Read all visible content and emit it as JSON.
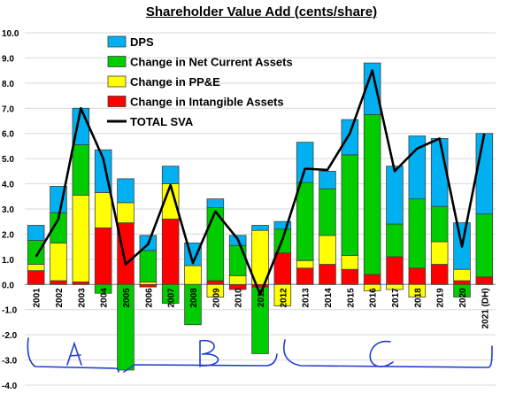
{
  "chart_data": {
    "type": "bar",
    "stacked": true,
    "title": "Shareholder Value Add (cents/share)",
    "categories": [
      "2001",
      "2002",
      "2003",
      "2004",
      "2005",
      "2006",
      "2007",
      "2008",
      "2009",
      "2010",
      "2011",
      "2012",
      "2013",
      "2014",
      "2015",
      "2016",
      "2017",
      "2018",
      "2019",
      "2020",
      "2021 (DH)"
    ],
    "ylim": [
      -4.0,
      10.0
    ],
    "yticks": [
      "10.0",
      "9.0",
      "8.0",
      "7.0",
      "6.0",
      "5.0",
      "4.0",
      "3.0",
      "2.0",
      "1.0",
      "0.0",
      "-1.0",
      "-2.0",
      "-3.0",
      "-4.0"
    ],
    "grid": true,
    "legend_position": "top-left",
    "series": [
      {
        "name": "Change in Intangible Assets",
        "color": "#ff0000",
        "values": [
          0.55,
          0.15,
          0.1,
          2.25,
          2.45,
          -0.1,
          2.6,
          0,
          0.15,
          -0.2,
          -0.1,
          1.25,
          0.65,
          0.8,
          0.6,
          0.4,
          1.1,
          0.65,
          0.8,
          0.15,
          0.3
        ]
      },
      {
        "name": "Change in PP&E",
        "color": "#ffff00",
        "values": [
          0.25,
          1.5,
          3.45,
          1.4,
          0.8,
          0.1,
          1.4,
          0.75,
          -0.5,
          0.35,
          2.15,
          -0.85,
          0.3,
          1.15,
          0.55,
          -0.25,
          -0.2,
          -0.5,
          0.9,
          0.45,
          0
        ]
      },
      {
        "name": "Change in Net Current Assets",
        "color": "#00cc00",
        "values": [
          0.95,
          1.2,
          2.0,
          -0.35,
          -3.4,
          1.25,
          -0.75,
          -1.6,
          2.9,
          1.2,
          -2.65,
          0.95,
          3.1,
          1.85,
          4.0,
          6.35,
          1.3,
          2.75,
          1.4,
          -0.5,
          2.5
        ]
      },
      {
        "name": "DPS",
        "color": "#00b0f0",
        "values": [
          0.6,
          1.05,
          1.45,
          1.7,
          0.95,
          0.6,
          0.7,
          0.9,
          0.35,
          0.4,
          0.2,
          0.3,
          1.6,
          0.7,
          1.4,
          2.05,
          2.3,
          2.5,
          2.7,
          1.85,
          3.2
        ]
      },
      {
        "name": "TOTAL SVA",
        "color": "#000000",
        "type": "line",
        "values": [
          1.1,
          2.6,
          7.0,
          5.0,
          0.8,
          1.6,
          3.95,
          0.85,
          2.9,
          1.8,
          -0.4,
          1.8,
          4.6,
          4.55,
          6.0,
          8.5,
          4.5,
          5.4,
          5.8,
          1.5,
          6.0
        ]
      }
    ],
    "annotations": [
      "A",
      "B",
      "C"
    ]
  }
}
